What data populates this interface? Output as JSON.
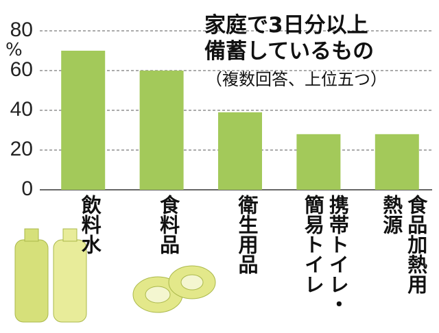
{
  "chart_data": {
    "type": "bar",
    "title": "家庭で3日分以上\n備蓄しているもの",
    "subtitle": "（複数回答、上位五つ）",
    "y_label": "%",
    "categories": [
      "飲料水",
      "食料品",
      "衛生用品",
      "携帯トイレ・\n簡易トイレ",
      "食品加熱用\n熱源"
    ],
    "values": [
      70,
      60,
      39,
      28,
      28
    ],
    "color": "#a3c95a",
    "ylim": [
      0,
      80
    ],
    "yticks": [
      0,
      20,
      40,
      60,
      80
    ],
    "grid": true
  }
}
